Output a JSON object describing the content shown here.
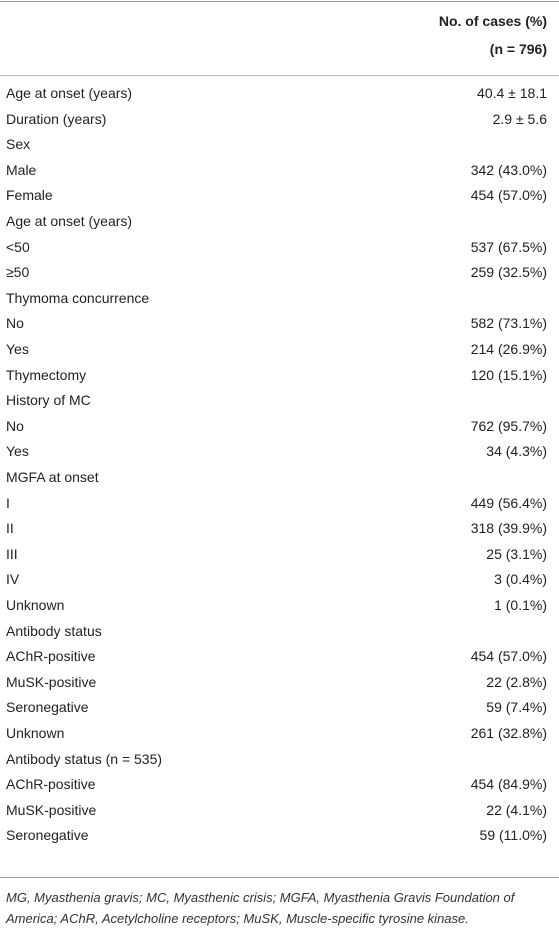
{
  "table": {
    "header": [
      "No. of cases (%)",
      "(n = 796)"
    ],
    "rows": [
      [
        "Age at onset (years)",
        "40.4 ± 18.1"
      ],
      [
        "Duration (years)",
        "2.9 ± 5.6"
      ],
      [
        "Sex"
      ],
      [
        "Male",
        "342 (43.0%)"
      ],
      [
        "Female",
        "454 (57.0%)"
      ],
      [
        "Age at onset (years)"
      ],
      [
        "<50",
        "537 (67.5%)"
      ],
      [
        "≥50",
        "259 (32.5%)"
      ],
      [
        "Thymoma concurrence"
      ],
      [
        "No",
        "582 (73.1%)"
      ],
      [
        "Yes",
        "214 (26.9%)"
      ],
      [
        "Thymectomy",
        "120 (15.1%)"
      ],
      [
        "History of MC"
      ],
      [
        "No",
        "762 (95.7%)"
      ],
      [
        "Yes",
        "34 (4.3%)"
      ],
      [
        "MGFA at onset"
      ],
      [
        "I",
        "449 (56.4%)"
      ],
      [
        "II",
        "318 (39.9%)"
      ],
      [
        "III",
        "25 (3.1%)"
      ],
      [
        "IV",
        "3 (0.4%)"
      ],
      [
        "Unknown",
        "1 (0.1%)"
      ],
      [
        "Antibody status"
      ],
      [
        "AChR-positive",
        "454 (57.0%)"
      ],
      [
        "MuSK-positive",
        "22 (2.8%)"
      ],
      [
        "Seronegative",
        "59 (7.4%)"
      ],
      [
        "Unknown",
        "261 (32.8%)"
      ],
      [
        "Antibody status (n = 535)"
      ],
      [
        "AChR-positive",
        "454 (84.9%)"
      ],
      [
        "MuSK-positive",
        "22 (4.1%)"
      ],
      [
        "Seronegative",
        "59 (11.0%)"
      ]
    ],
    "footnote": "MG, Myasthenia gravis; MC, Myasthenic crisis; MGFA, Myasthenia Gravis Foundation of America; AChR, Acetylcholine receptors; MuSK, Muscle-specific tyrosine kinase."
  }
}
